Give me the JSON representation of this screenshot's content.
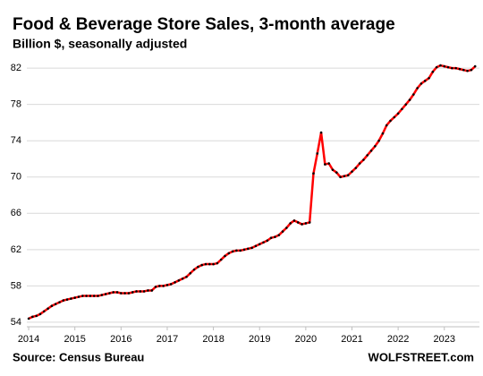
{
  "chart_data": {
    "type": "line",
    "title": "Food & Beverage Store Sales, 3-month average",
    "subtitle": "Billion $, seasonally adjusted",
    "source": "Source: Census Bureau",
    "brand": "WOLFSTREET.com",
    "color": "#ff0000",
    "marker_color": "#000000",
    "grid": true,
    "xlim": [
      2013.96,
      2023.76
    ],
    "xticks": [
      2014,
      2015,
      2016,
      2017,
      2018,
      2019,
      2020,
      2021,
      2022,
      2023
    ],
    "ylim": [
      53.5,
      83
    ],
    "yticks": [
      54,
      58,
      62,
      66,
      70,
      74,
      78,
      82
    ],
    "x": [
      2014,
      2014.083,
      2014.167,
      2014.25,
      2014.333,
      2014.417,
      2014.5,
      2014.583,
      2014.667,
      2014.75,
      2014.833,
      2014.917,
      2015,
      2015.083,
      2015.167,
      2015.25,
      2015.333,
      2015.417,
      2015.5,
      2015.583,
      2015.667,
      2015.75,
      2015.833,
      2015.917,
      2016,
      2016.083,
      2016.167,
      2016.25,
      2016.333,
      2016.417,
      2016.5,
      2016.583,
      2016.667,
      2016.75,
      2016.833,
      2016.917,
      2017,
      2017.083,
      2017.167,
      2017.25,
      2017.333,
      2017.417,
      2017.5,
      2017.583,
      2017.667,
      2017.75,
      2017.833,
      2017.917,
      2018,
      2018.083,
      2018.167,
      2018.25,
      2018.333,
      2018.417,
      2018.5,
      2018.583,
      2018.667,
      2018.75,
      2018.833,
      2018.917,
      2019,
      2019.083,
      2019.167,
      2019.25,
      2019.333,
      2019.417,
      2019.5,
      2019.583,
      2019.667,
      2019.75,
      2019.833,
      2019.917,
      2020,
      2020.083,
      2020.167,
      2020.25,
      2020.333,
      2020.417,
      2020.5,
      2020.583,
      2020.667,
      2020.75,
      2020.833,
      2020.917,
      2021,
      2021.083,
      2021.167,
      2021.25,
      2021.333,
      2021.417,
      2021.5,
      2021.583,
      2021.667,
      2021.75,
      2021.833,
      2021.917,
      2022,
      2022.083,
      2022.167,
      2022.25,
      2022.333,
      2022.417,
      2022.5,
      2022.583,
      2022.667,
      2022.75,
      2022.833,
      2022.917,
      2023,
      2023.083,
      2023.167,
      2023.25,
      2023.333,
      2023.417,
      2023.5,
      2023.583,
      2023.667
    ],
    "values": [
      54.4,
      54.6,
      54.7,
      54.9,
      55.2,
      55.5,
      55.8,
      56.0,
      56.2,
      56.4,
      56.5,
      56.6,
      56.7,
      56.8,
      56.9,
      56.9,
      56.9,
      56.9,
      56.9,
      57.0,
      57.1,
      57.2,
      57.3,
      57.3,
      57.2,
      57.2,
      57.2,
      57.3,
      57.4,
      57.4,
      57.4,
      57.5,
      57.5,
      57.9,
      58.0,
      58.0,
      58.1,
      58.2,
      58.4,
      58.6,
      58.8,
      59.0,
      59.4,
      59.8,
      60.1,
      60.3,
      60.4,
      60.4,
      60.4,
      60.5,
      60.9,
      61.3,
      61.6,
      61.8,
      61.9,
      61.9,
      62.0,
      62.1,
      62.2,
      62.4,
      62.6,
      62.8,
      63.0,
      63.3,
      63.4,
      63.6,
      64.0,
      64.4,
      64.9,
      65.2,
      65.0,
      64.8,
      64.9,
      65.0,
      70.4,
      72.6,
      74.9,
      71.4,
      71.5,
      70.8,
      70.5,
      70.0,
      70.1,
      70.2,
      70.6,
      71.0,
      71.5,
      71.9,
      72.4,
      72.9,
      73.4,
      74.0,
      74.8,
      75.7,
      76.2,
      76.6,
      77.0,
      77.5,
      78.0,
      78.5,
      79.1,
      79.8,
      80.3,
      80.6,
      80.9,
      81.6,
      82.1,
      82.3,
      82.2,
      82.1,
      82.0,
      82.0,
      81.9,
      81.8,
      81.7,
      81.8,
      82.2
    ]
  }
}
